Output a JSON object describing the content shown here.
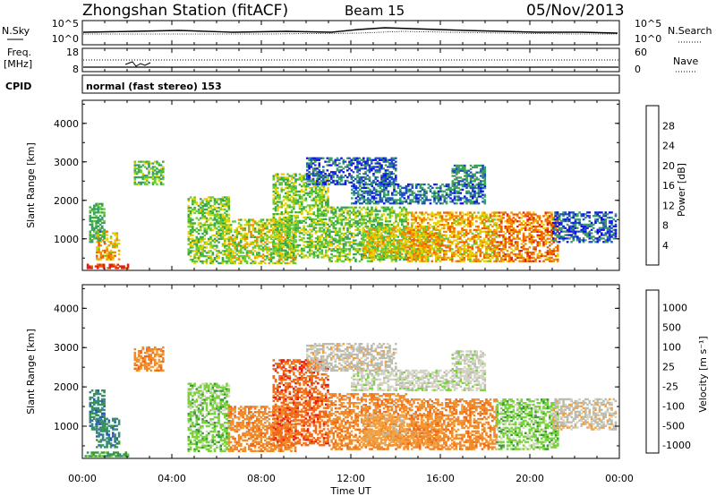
{
  "header": {
    "title": "Zhongshan Station (fitACF)",
    "beam": "Beam 15",
    "date": "05/Nov/2013"
  },
  "strip_nsky": {
    "left_label": "N.Sky",
    "left_ticks": [
      "10^5",
      "10^0"
    ],
    "right_ticks": [
      "10^5",
      "10^0"
    ],
    "right_label": "N.Search"
  },
  "strip_freq": {
    "left_label_1": "Freq.",
    "left_label_2": "[MHz]",
    "left_ticks": [
      "18",
      "8"
    ],
    "right_ticks": [
      "60",
      "0"
    ],
    "right_label": "Nave"
  },
  "strip_cpid": {
    "label": "CPID",
    "text": "normal (fast stereo) 153"
  },
  "x_axis": {
    "ticks": [
      "00:00",
      "04:00",
      "08:00",
      "12:00",
      "16:00",
      "20:00",
      "00:00"
    ],
    "label": "Time UT"
  },
  "colors": {
    "power_scale": [
      "#1010ee",
      "#2050c0",
      "#3c9a6e",
      "#3aa848",
      "#66cc33",
      "#e8d000",
      "#f09000",
      "#f06000",
      "#e02010"
    ],
    "velocity_scale": [
      "#e81818",
      "#f06818",
      "#f08a2a",
      "#f4a040",
      "#bcbcb0",
      "#d4d4c4",
      "#7ad23c",
      "#3a9a3a",
      "#3c8a78",
      "#2a5ab8",
      "#2030c8"
    ]
  },
  "chart_data": [
    {
      "type": "heatmap",
      "name": "power",
      "ylabel": "Slant Range [km]",
      "yticks": [
        "1000",
        "2000",
        "3000",
        "4000"
      ],
      "yrange_km": [
        180,
        4600
      ],
      "xrange_hours": [
        0,
        24
      ],
      "colorbar_title": "Power [dB]",
      "colorbar_ticks": [
        "4",
        "8",
        "12",
        "16",
        "20",
        "24",
        "28"
      ],
      "colorbar_range": [
        0,
        32
      ],
      "blobs": [
        {
          "t0": 0.1,
          "t1": 2.0,
          "r0": 220,
          "r1": 340,
          "v": 30
        },
        {
          "t0": 0.6,
          "t1": 1.6,
          "r0": 450,
          "r1": 1200,
          "v": 22
        },
        {
          "t0": 0.3,
          "t1": 1.0,
          "r0": 900,
          "r1": 1900,
          "v": 12
        },
        {
          "t0": 2.3,
          "t1": 3.6,
          "r0": 2400,
          "r1": 3000,
          "v": 14
        },
        {
          "t0": 4.7,
          "t1": 6.5,
          "r0": 350,
          "r1": 2100,
          "v": 16
        },
        {
          "t0": 6.5,
          "t1": 9.5,
          "r0": 350,
          "r1": 1500,
          "v": 18
        },
        {
          "t0": 8.5,
          "t1": 11.0,
          "r0": 500,
          "r1": 2700,
          "v": 16
        },
        {
          "t0": 11.0,
          "t1": 14.5,
          "r0": 400,
          "r1": 1800,
          "v": 15
        },
        {
          "t0": 12.5,
          "t1": 16.0,
          "r0": 500,
          "r1": 1300,
          "v": 20
        },
        {
          "t0": 14.5,
          "t1": 18.5,
          "r0": 400,
          "r1": 1700,
          "v": 22
        },
        {
          "t0": 16.5,
          "t1": 18.0,
          "r0": 2300,
          "r1": 2900,
          "v": 9
        },
        {
          "t0": 18.5,
          "t1": 21.2,
          "r0": 400,
          "r1": 1700,
          "v": 25
        },
        {
          "t0": 12.0,
          "t1": 18.0,
          "r0": 1900,
          "r1": 2400,
          "v": 7
        },
        {
          "t0": 21.0,
          "t1": 23.8,
          "r0": 900,
          "r1": 1700,
          "v": 6
        },
        {
          "t0": 10.0,
          "t1": 14.0,
          "r0": 2400,
          "r1": 3100,
          "v": 6
        }
      ]
    },
    {
      "type": "heatmap",
      "name": "velocity",
      "ylabel": "Slant Range [km]",
      "yticks": [
        "1000",
        "2000",
        "3000",
        "4000"
      ],
      "yrange_km": [
        180,
        4600
      ],
      "xrange_hours": [
        0,
        24
      ],
      "colorbar_title": "Velocity [m s⁻¹]",
      "colorbar_ticks": [
        "1000",
        "500",
        "100",
        "25",
        "-25",
        "-100",
        "-500",
        "-1000"
      ],
      "blobs": [
        {
          "t0": 0.1,
          "t1": 2.0,
          "r0": 220,
          "r1": 340,
          "v": 7
        },
        {
          "t0": 0.6,
          "t1": 1.6,
          "r0": 450,
          "r1": 1200,
          "v": 8
        },
        {
          "t0": 0.3,
          "t1": 1.0,
          "r0": 900,
          "r1": 1900,
          "v": 8
        },
        {
          "t0": 2.3,
          "t1": 3.6,
          "r0": 2400,
          "r1": 3000,
          "v": 2
        },
        {
          "t0": 4.7,
          "t1": 6.5,
          "r0": 350,
          "r1": 2100,
          "v": 6
        },
        {
          "t0": 6.5,
          "t1": 9.5,
          "r0": 350,
          "r1": 1500,
          "v": 2
        },
        {
          "t0": 8.5,
          "t1": 11.0,
          "r0": 500,
          "r1": 2700,
          "v": 1
        },
        {
          "t0": 11.0,
          "t1": 14.5,
          "r0": 400,
          "r1": 1800,
          "v": 2
        },
        {
          "t0": 12.5,
          "t1": 16.0,
          "r0": 500,
          "r1": 1300,
          "v": 3
        },
        {
          "t0": 14.5,
          "t1": 18.5,
          "r0": 400,
          "r1": 1700,
          "v": 2
        },
        {
          "t0": 16.5,
          "t1": 18.0,
          "r0": 2300,
          "r1": 2900,
          "v": 5
        },
        {
          "t0": 18.5,
          "t1": 21.2,
          "r0": 400,
          "r1": 1700,
          "v": 6
        },
        {
          "t0": 12.0,
          "t1": 18.0,
          "r0": 1900,
          "r1": 2400,
          "v": 5
        },
        {
          "t0": 21.0,
          "t1": 23.8,
          "r0": 900,
          "r1": 1700,
          "v": 4
        },
        {
          "t0": 10.0,
          "t1": 14.0,
          "r0": 2400,
          "r1": 3100,
          "v": 4
        }
      ]
    }
  ]
}
